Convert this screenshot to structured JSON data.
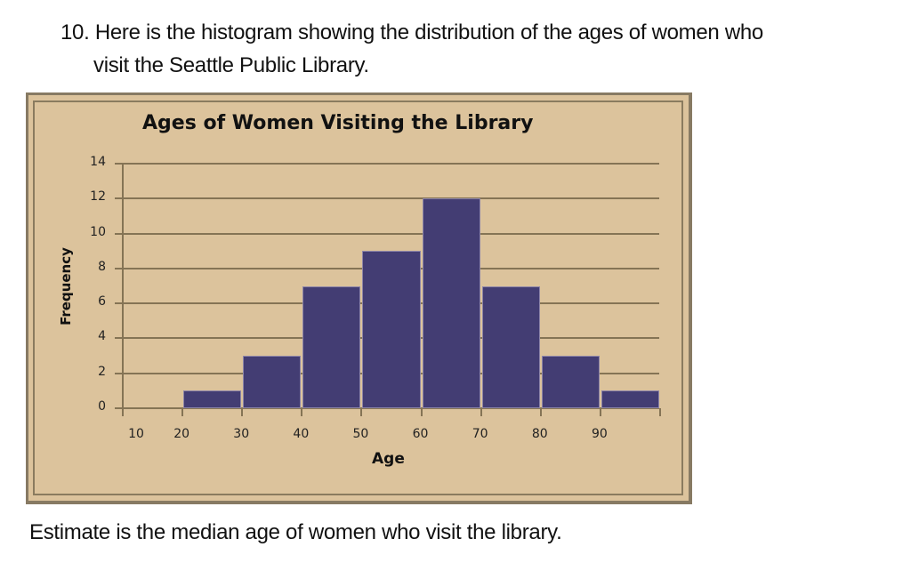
{
  "question": {
    "line1": "10. Here is the histogram showing the distribution of the ages of women who",
    "line2": "visit the Seattle Public Library."
  },
  "prompt": "Estimate is the median age of women who visit the library.",
  "colors": {
    "background": "#dcc39c",
    "bar": "#433d73",
    "gridline": "#857455",
    "border": "#877a63"
  },
  "chart_data": {
    "type": "bar",
    "title": "Ages of Women Visiting  the Library",
    "xlabel": "Age",
    "ylabel": "Frequency",
    "categories": [
      "10-20",
      "20-30",
      "30-40",
      "40-50",
      "50-60",
      "60-70",
      "70-80",
      "80-90",
      "90-100"
    ],
    "bin_edges": [
      10,
      20,
      30,
      40,
      50,
      60,
      70,
      80,
      90,
      100
    ],
    "values": [
      0,
      1,
      3,
      7,
      9,
      12,
      7,
      3,
      1
    ],
    "x_tick_labels": [
      "10",
      "20",
      "30",
      "40",
      "50",
      "60",
      "70",
      "80",
      "90"
    ],
    "y_tick_labels": [
      "0",
      "2",
      "4",
      "6",
      "8",
      "10",
      "12",
      "14"
    ],
    "ylim": [
      0,
      14
    ],
    "grid": true,
    "legend": null
  }
}
